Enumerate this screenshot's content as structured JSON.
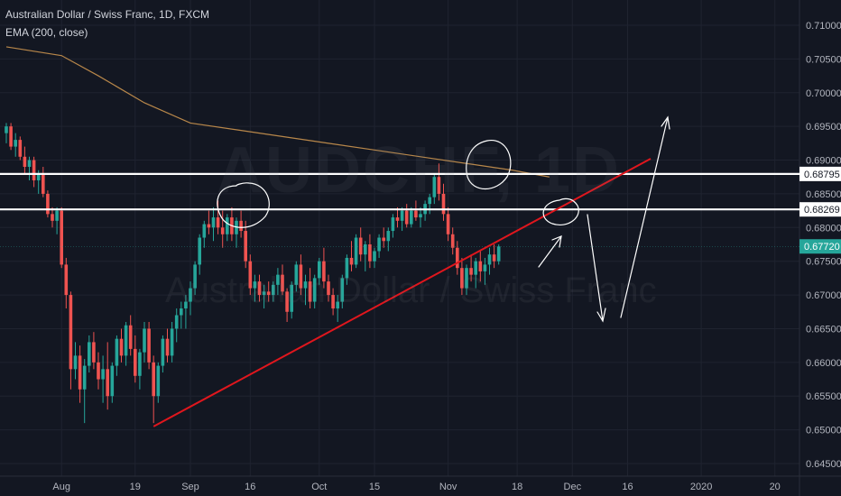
{
  "header": {
    "title": "Australian Dollar / Swiss Franc, 1D, FXCM",
    "indicator": "EMA (200, close)"
  },
  "watermark": {
    "symbol": "AUDCHF, 1D",
    "name": "Australian Dollar / Swiss Franc"
  },
  "colors": {
    "background": "#131722",
    "grid": "#1f2330",
    "up": "#26a69a",
    "down": "#ef5350",
    "ema": "#b8874a",
    "trendline": "#e0161d",
    "levels": "#ffffff",
    "last_price_bg": "#26a69a"
  },
  "chart_data": {
    "type": "candlestick",
    "title": "Australian Dollar / Swiss Franc, 1D, FXCM",
    "price_axis": {
      "ylim": [
        0.645,
        0.712
      ],
      "ticks": [
        "0.71000",
        "0.70500",
        "0.70000",
        "0.69500",
        "0.69000",
        "0.68500",
        "0.68000",
        "0.67500",
        "0.67000",
        "0.66500",
        "0.66000",
        "0.65500",
        "0.65000",
        "0.64500"
      ],
      "tick_values": [
        0.71,
        0.705,
        0.7,
        0.695,
        0.69,
        0.685,
        0.68,
        0.675,
        0.67,
        0.665,
        0.66,
        0.655,
        0.65,
        0.645
      ]
    },
    "time_axis": {
      "labels": [
        "Aug",
        "19",
        "Sep",
        "16",
        "Oct",
        "15",
        "Nov",
        "18",
        "Dec",
        "16",
        "2020",
        "20"
      ],
      "label_bar_index": [
        12,
        28,
        40,
        53,
        68,
        80,
        96,
        111,
        123,
        135,
        151,
        167
      ]
    },
    "price_labels": [
      {
        "text": "0.68795",
        "value": 0.68795,
        "style": "level"
      },
      {
        "text": "0.68269",
        "value": 0.68269,
        "style": "level"
      },
      {
        "text": "0.67720",
        "value": 0.6772,
        "style": "last"
      }
    ],
    "horizontal_levels": [
      0.68795,
      0.68269
    ],
    "last_price": 0.6772,
    "ema_200": [
      [
        0,
        0.7068
      ],
      [
        12,
        0.7055
      ],
      [
        20,
        0.7025
      ],
      [
        30,
        0.6985
      ],
      [
        40,
        0.6955
      ],
      [
        50,
        0.6945
      ],
      [
        60,
        0.6935
      ],
      [
        70,
        0.6925
      ],
      [
        80,
        0.6915
      ],
      [
        90,
        0.6905
      ],
      [
        100,
        0.6895
      ],
      [
        110,
        0.6885
      ],
      [
        118,
        0.6875
      ]
    ],
    "trendline": [
      [
        32,
        0.6505
      ],
      [
        140,
        0.6902
      ]
    ],
    "candles": [
      [
        0.694,
        0.6955,
        0.6925,
        0.695
      ],
      [
        0.695,
        0.6955,
        0.6915,
        0.692
      ],
      [
        0.692,
        0.694,
        0.6905,
        0.693
      ],
      [
        0.693,
        0.6935,
        0.69,
        0.6905
      ],
      [
        0.6905,
        0.692,
        0.688,
        0.689
      ],
      [
        0.689,
        0.6905,
        0.687,
        0.69
      ],
      [
        0.69,
        0.6905,
        0.686,
        0.687
      ],
      [
        0.687,
        0.6885,
        0.685,
        0.688
      ],
      [
        0.688,
        0.689,
        0.6845,
        0.685
      ],
      [
        0.685,
        0.6855,
        0.6815,
        0.682
      ],
      [
        0.682,
        0.683,
        0.68,
        0.681
      ],
      [
        0.681,
        0.683,
        0.679,
        0.6825
      ],
      [
        0.6825,
        0.683,
        0.674,
        0.6745
      ],
      [
        0.6745,
        0.6755,
        0.668,
        0.67
      ],
      [
        0.67,
        0.6705,
        0.656,
        0.659
      ],
      [
        0.659,
        0.663,
        0.6575,
        0.661
      ],
      [
        0.661,
        0.6625,
        0.654,
        0.656
      ],
      [
        0.656,
        0.6605,
        0.651,
        0.6595
      ],
      [
        0.6595,
        0.664,
        0.6585,
        0.663
      ],
      [
        0.663,
        0.6645,
        0.659,
        0.66
      ],
      [
        0.66,
        0.6615,
        0.656,
        0.6575
      ],
      [
        0.6575,
        0.661,
        0.654,
        0.659
      ],
      [
        0.659,
        0.663,
        0.653,
        0.655
      ],
      [
        0.655,
        0.66,
        0.654,
        0.6595
      ],
      [
        0.6595,
        0.664,
        0.658,
        0.6635
      ],
      [
        0.6635,
        0.665,
        0.66,
        0.661
      ],
      [
        0.661,
        0.666,
        0.6595,
        0.6655
      ],
      [
        0.6655,
        0.667,
        0.661,
        0.662
      ],
      [
        0.662,
        0.664,
        0.657,
        0.658
      ],
      [
        0.658,
        0.662,
        0.656,
        0.6615
      ],
      [
        0.6615,
        0.666,
        0.66,
        0.665
      ],
      [
        0.665,
        0.666,
        0.659,
        0.66
      ],
      [
        0.66,
        0.661,
        0.651,
        0.655
      ],
      [
        0.655,
        0.66,
        0.654,
        0.6595
      ],
      [
        0.6595,
        0.664,
        0.6585,
        0.6635
      ],
      [
        0.6635,
        0.665,
        0.66,
        0.661
      ],
      [
        0.661,
        0.666,
        0.66,
        0.665
      ],
      [
        0.665,
        0.668,
        0.663,
        0.667
      ],
      [
        0.667,
        0.669,
        0.665,
        0.668
      ],
      [
        0.668,
        0.67,
        0.665,
        0.669
      ],
      [
        0.669,
        0.672,
        0.667,
        0.671
      ],
      [
        0.671,
        0.675,
        0.67,
        0.6745
      ],
      [
        0.6745,
        0.679,
        0.673,
        0.6785
      ],
      [
        0.6785,
        0.681,
        0.677,
        0.6805
      ],
      [
        0.6805,
        0.6825,
        0.679,
        0.68
      ],
      [
        0.68,
        0.683,
        0.678,
        0.6815
      ],
      [
        0.6815,
        0.684,
        0.679,
        0.68
      ],
      [
        0.68,
        0.6825,
        0.677,
        0.679
      ],
      [
        0.679,
        0.682,
        0.678,
        0.6815
      ],
      [
        0.6815,
        0.683,
        0.678,
        0.679
      ],
      [
        0.679,
        0.6815,
        0.677,
        0.681
      ],
      [
        0.681,
        0.6825,
        0.6785,
        0.6795
      ],
      [
        0.6795,
        0.681,
        0.674,
        0.675
      ],
      [
        0.675,
        0.676,
        0.67,
        0.671
      ],
      [
        0.671,
        0.673,
        0.669,
        0.672
      ],
      [
        0.672,
        0.673,
        0.669,
        0.67
      ],
      [
        0.67,
        0.6715,
        0.668,
        0.6705
      ],
      [
        0.6705,
        0.672,
        0.669,
        0.67
      ],
      [
        0.67,
        0.672,
        0.669,
        0.6715
      ],
      [
        0.6715,
        0.674,
        0.67,
        0.673
      ],
      [
        0.673,
        0.6745,
        0.67,
        0.6705
      ],
      [
        0.6705,
        0.671,
        0.666,
        0.6675
      ],
      [
        0.6675,
        0.672,
        0.6665,
        0.6715
      ],
      [
        0.6715,
        0.675,
        0.6705,
        0.6745
      ],
      [
        0.6745,
        0.676,
        0.67,
        0.671
      ],
      [
        0.671,
        0.673,
        0.6685,
        0.672
      ],
      [
        0.672,
        0.674,
        0.668,
        0.669
      ],
      [
        0.669,
        0.673,
        0.668,
        0.6725
      ],
      [
        0.6725,
        0.6755,
        0.6715,
        0.675
      ],
      [
        0.675,
        0.677,
        0.671,
        0.672
      ],
      [
        0.672,
        0.673,
        0.669,
        0.67
      ],
      [
        0.67,
        0.671,
        0.667,
        0.668
      ],
      [
        0.668,
        0.67,
        0.666,
        0.669
      ],
      [
        0.669,
        0.673,
        0.668,
        0.6725
      ],
      [
        0.6725,
        0.676,
        0.6715,
        0.6755
      ],
      [
        0.6755,
        0.678,
        0.6735,
        0.6745
      ],
      [
        0.6745,
        0.679,
        0.674,
        0.6785
      ],
      [
        0.6785,
        0.68,
        0.675,
        0.676
      ],
      [
        0.676,
        0.678,
        0.6735,
        0.6775
      ],
      [
        0.6775,
        0.679,
        0.674,
        0.675
      ],
      [
        0.675,
        0.677,
        0.674,
        0.6765
      ],
      [
        0.6765,
        0.679,
        0.6755,
        0.6785
      ],
      [
        0.6785,
        0.68,
        0.677,
        0.678
      ],
      [
        0.678,
        0.68,
        0.6765,
        0.6795
      ],
      [
        0.6795,
        0.682,
        0.6785,
        0.6815
      ],
      [
        0.6815,
        0.683,
        0.68,
        0.681
      ],
      [
        0.681,
        0.683,
        0.6795,
        0.6825
      ],
      [
        0.6825,
        0.6835,
        0.68,
        0.6805
      ],
      [
        0.6805,
        0.683,
        0.68,
        0.6825
      ],
      [
        0.6825,
        0.684,
        0.681,
        0.6815
      ],
      [
        0.6815,
        0.683,
        0.68,
        0.682
      ],
      [
        0.682,
        0.684,
        0.681,
        0.6835
      ],
      [
        0.6835,
        0.685,
        0.682,
        0.6845
      ],
      [
        0.6845,
        0.688,
        0.6835,
        0.6875
      ],
      [
        0.6875,
        0.6895,
        0.684,
        0.685
      ],
      [
        0.685,
        0.6865,
        0.681,
        0.682
      ],
      [
        0.682,
        0.683,
        0.678,
        0.679
      ],
      [
        0.679,
        0.68,
        0.676,
        0.677
      ],
      [
        0.677,
        0.678,
        0.673,
        0.674
      ],
      [
        0.674,
        0.6755,
        0.67,
        0.671
      ],
      [
        0.671,
        0.6745,
        0.67,
        0.674
      ],
      [
        0.674,
        0.676,
        0.672,
        0.673
      ],
      [
        0.673,
        0.6755,
        0.671,
        0.675
      ],
      [
        0.675,
        0.6765,
        0.672,
        0.6735
      ],
      [
        0.6735,
        0.6755,
        0.6715,
        0.6745
      ],
      [
        0.6745,
        0.677,
        0.673,
        0.676
      ],
      [
        0.676,
        0.6775,
        0.674,
        0.675
      ],
      [
        0.675,
        0.6775,
        0.6745,
        0.6772
      ]
    ]
  }
}
